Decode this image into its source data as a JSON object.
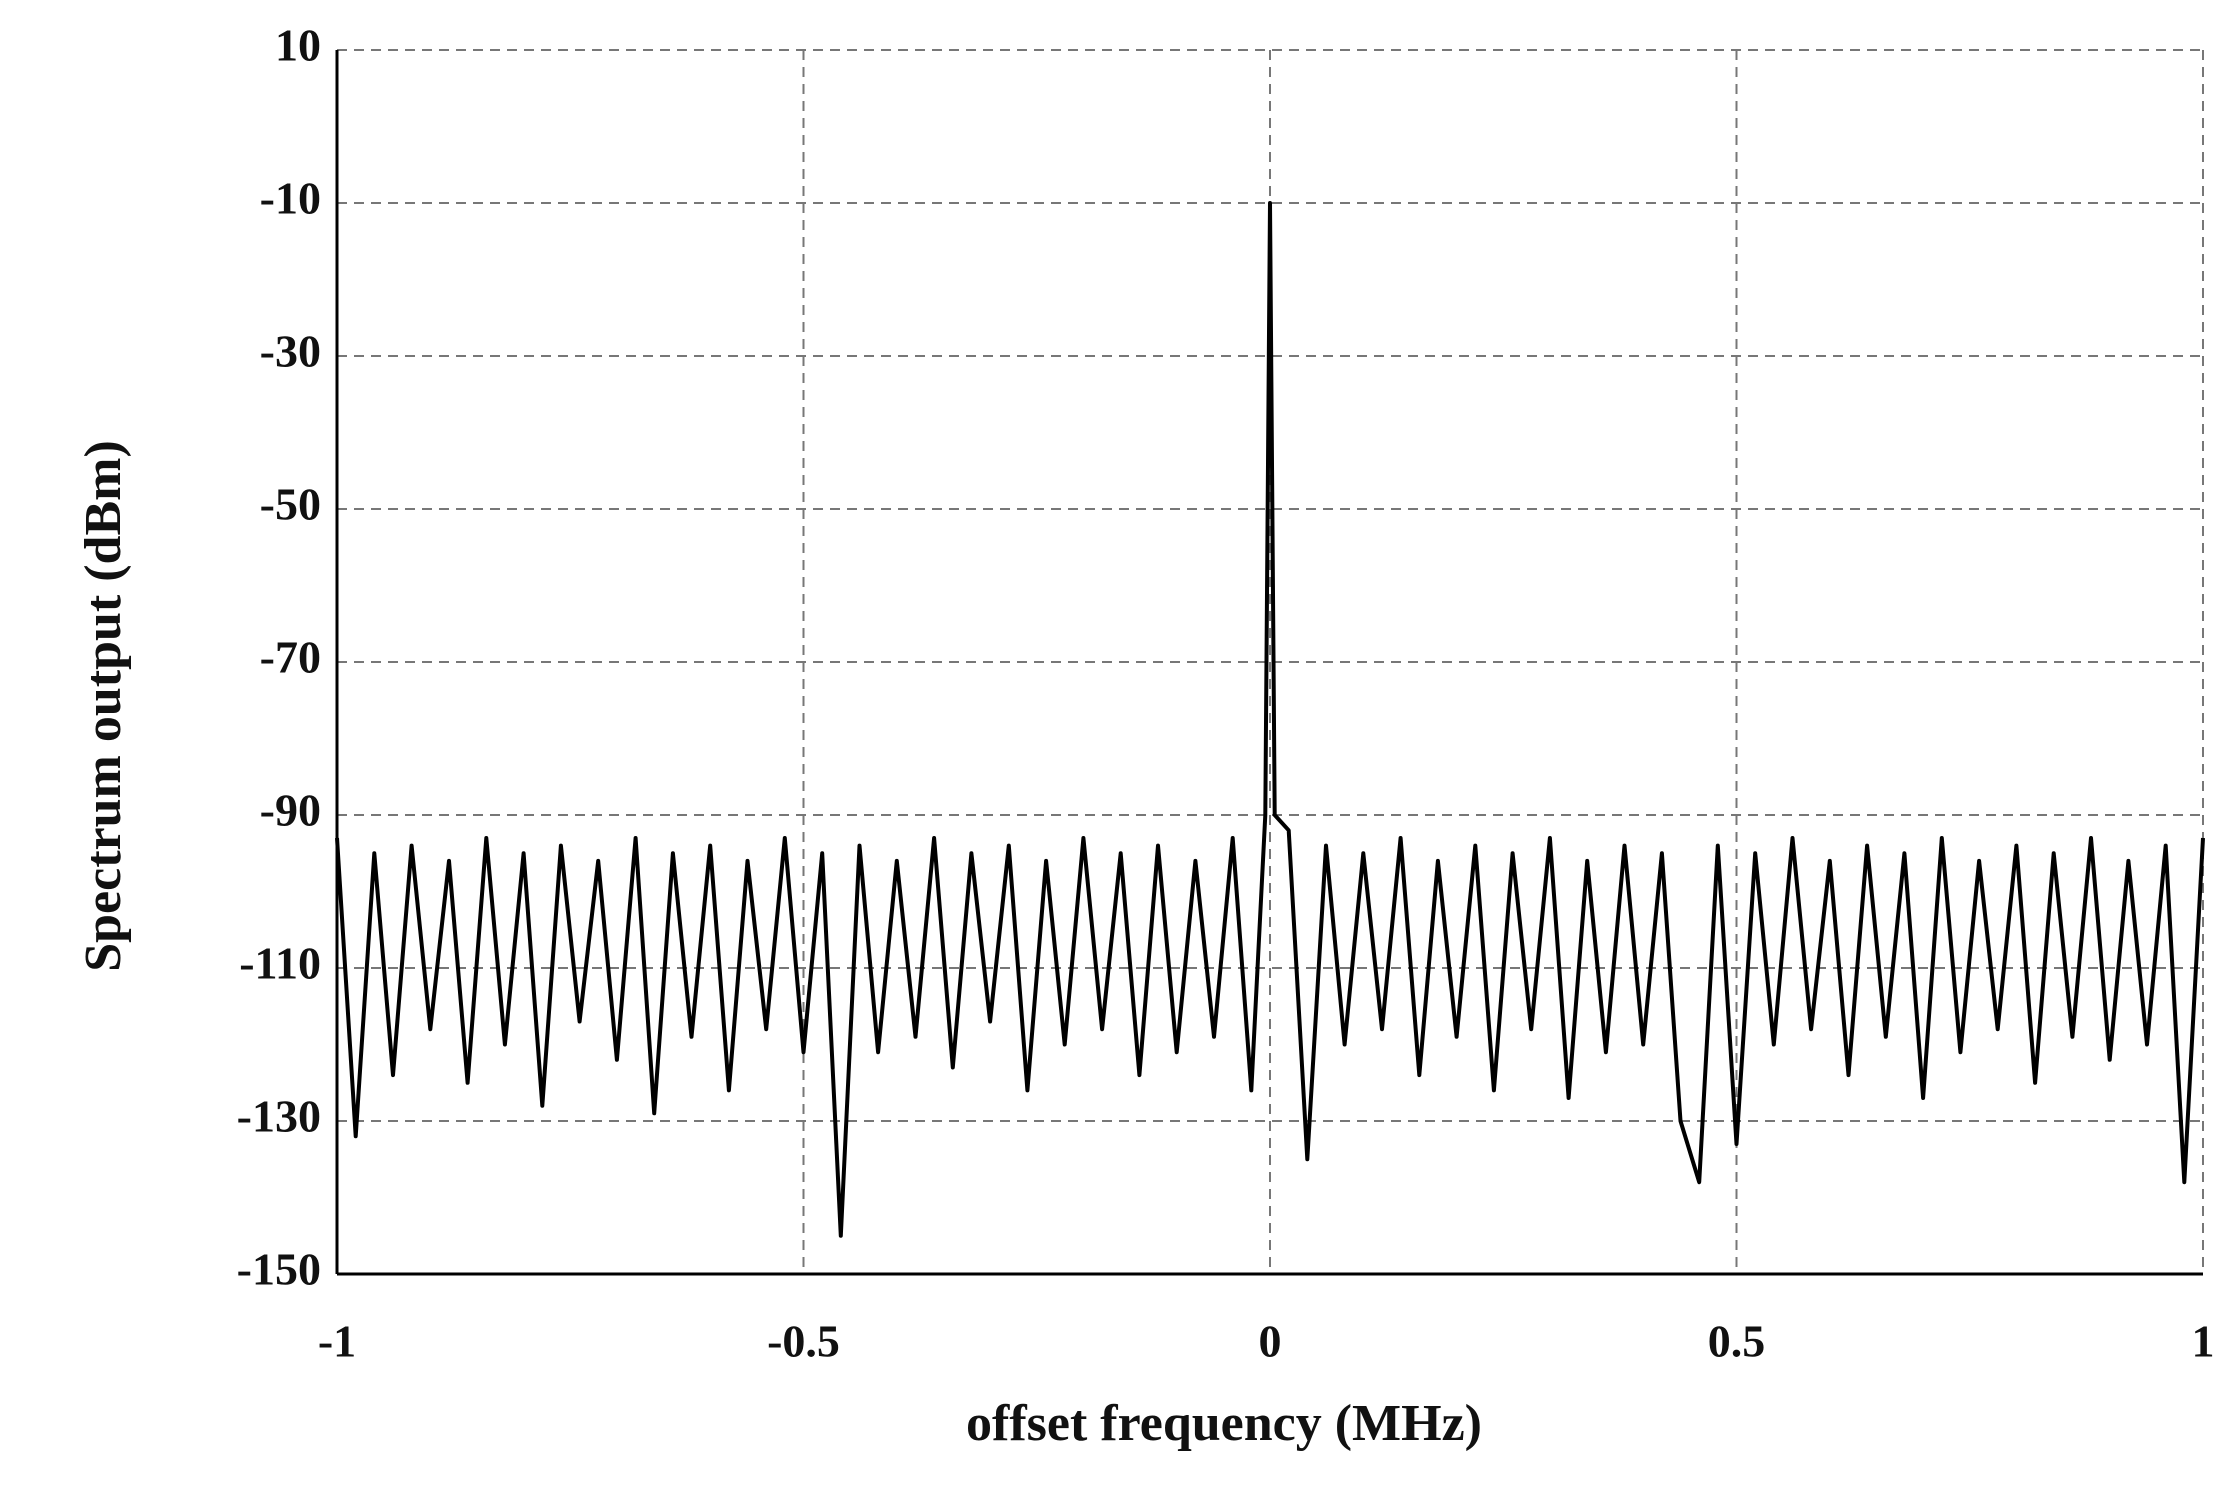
{
  "chart_data": {
    "type": "line",
    "x_label": "offset frequency (MHz)",
    "y_label": "Spectrum output (dBm)",
    "xlim": [
      -1,
      1
    ],
    "xticks": [
      -1,
      -0.5,
      0,
      0.5,
      1
    ],
    "ylim": [
      -150,
      10
    ],
    "yticks": [
      10,
      -10,
      -30,
      -50,
      -70,
      -90,
      -110,
      -130,
      -150
    ],
    "grid": true,
    "x": [
      -1,
      -0.98,
      -0.96,
      -0.94,
      -0.92,
      -0.9,
      -0.88,
      -0.86,
      -0.84,
      -0.82,
      -0.8,
      -0.78,
      -0.76,
      -0.74,
      -0.72,
      -0.7,
      -0.68,
      -0.66,
      -0.64,
      -0.62,
      -0.6,
      -0.58,
      -0.56,
      -0.54,
      -0.52,
      -0.5,
      -0.48,
      -0.46,
      -0.44,
      -0.42,
      -0.4,
      -0.38,
      -0.36,
      -0.34,
      -0.32,
      -0.3,
      -0.28,
      -0.26,
      -0.24,
      -0.22,
      -0.2,
      -0.18,
      -0.16,
      -0.14,
      -0.12,
      -0.1,
      -0.08,
      -0.06,
      -0.04,
      -0.02,
      -0.005,
      0,
      0.005,
      0.02,
      0.04,
      0.06,
      0.08,
      0.1,
      0.12,
      0.14,
      0.16,
      0.18,
      0.2,
      0.22,
      0.24,
      0.26,
      0.28,
      0.3,
      0.32,
      0.34,
      0.36,
      0.38,
      0.4,
      0.42,
      0.44,
      0.46,
      0.48,
      0.5,
      0.52,
      0.54,
      0.56,
      0.58,
      0.6,
      0.62,
      0.64,
      0.66,
      0.68,
      0.7,
      0.72,
      0.74,
      0.76,
      0.78,
      0.8,
      0.82,
      0.84,
      0.86,
      0.88,
      0.9,
      0.92,
      0.94,
      0.96,
      0.98,
      1
    ],
    "series": [
      {
        "color": "#000000",
        "values": [
          -93,
          -132,
          -95,
          -124,
          -94,
          -118,
          -96,
          -125,
          -93,
          -120,
          -95,
          -128,
          -94,
          -117,
          -96,
          -122,
          -93,
          -129,
          -95,
          -119,
          -94,
          -126,
          -96,
          -118,
          -93,
          -121,
          -95,
          -145,
          -94,
          -121,
          -96,
          -119,
          -93,
          -123,
          -95,
          -117,
          -94,
          -126,
          -96,
          -120,
          -93,
          -118,
          -95,
          -124,
          -94,
          -121,
          -96,
          -119,
          -93,
          -126,
          -90,
          -10,
          -90,
          -92,
          -135,
          -94,
          -120,
          -95,
          -118,
          -93,
          -124,
          -96,
          -119,
          -94,
          -126,
          -95,
          -118,
          -93,
          -127,
          -96,
          -121,
          -94,
          -120,
          -95,
          -130,
          -138,
          -94,
          -133,
          -95,
          -120,
          -93,
          -118,
          -96,
          -124,
          -94,
          -119,
          -95,
          -127,
          -93,
          -121,
          -96,
          -118,
          -94,
          -125,
          -95,
          -119,
          -93,
          -122,
          -96,
          -120,
          -94,
          -138,
          -93
        ]
      }
    ]
  }
}
